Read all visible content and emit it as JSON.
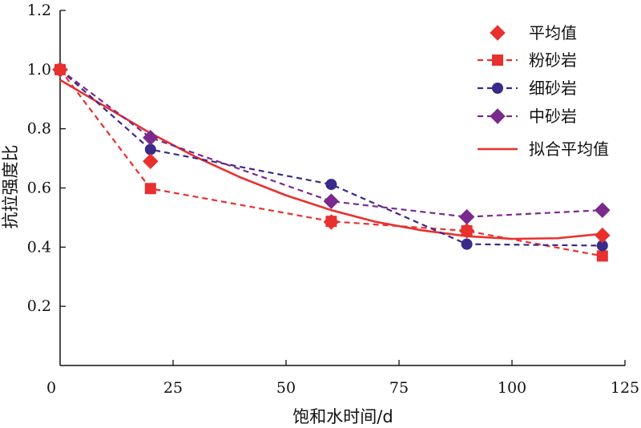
{
  "chart_data": {
    "type": "line",
    "xlabel": "饱和水时间/d",
    "ylabel": "抗拉强度比",
    "xlim": [
      0,
      125
    ],
    "ylim": [
      0,
      1.2
    ],
    "xticks": [
      0,
      25,
      50,
      75,
      100,
      125
    ],
    "xtick_labels": [
      "0",
      "25",
      "50",
      "75",
      "100",
      "125"
    ],
    "yticks": [
      0.2,
      0.4,
      0.6,
      0.8,
      1.0,
      1.2
    ],
    "ytick_labels": [
      "0.2",
      "0.4",
      "0.6",
      "0.8",
      "1.0",
      "1.2"
    ],
    "legend_position": "top-right",
    "colors": {
      "mean": "#e8312f",
      "siltstone": "#e8312f",
      "finesandstone": "#3a2a8a",
      "mediumsandstone": "#7a2a8c",
      "fit": "#e8312f"
    },
    "series": [
      {
        "key": "mean",
        "name": "平均值",
        "style": "markers",
        "marker": "diamond",
        "x": [
          0,
          20,
          60,
          90,
          120
        ],
        "y": [
          1.0,
          0.69,
          0.485,
          0.455,
          0.44
        ]
      },
      {
        "key": "siltstone",
        "name": "粉砂岩",
        "style": "dashed",
        "marker": "square",
        "x": [
          0,
          20,
          60,
          90,
          120
        ],
        "y": [
          1.0,
          0.598,
          0.487,
          0.455,
          0.37
        ]
      },
      {
        "key": "finesandstone",
        "name": "细砂岩",
        "style": "dashed",
        "marker": "circle",
        "x": [
          0,
          20,
          60,
          90,
          120
        ],
        "y": [
          1.0,
          0.73,
          0.612,
          0.41,
          0.405
        ]
      },
      {
        "key": "mediumsandstone",
        "name": "中砂岩",
        "style": "dashed",
        "marker": "diamond",
        "x": [
          0,
          20,
          60,
          90,
          120
        ],
        "y": [
          1.0,
          0.77,
          0.555,
          0.502,
          0.525
        ]
      },
      {
        "key": "fit",
        "name": "拟合平均值",
        "style": "solid",
        "marker": "none",
        "x": [
          0,
          10,
          20,
          30,
          40,
          50,
          60,
          70,
          80,
          90,
          100,
          110,
          120
        ],
        "y": [
          0.965,
          0.875,
          0.785,
          0.705,
          0.635,
          0.575,
          0.525,
          0.485,
          0.457,
          0.437,
          0.428,
          0.43,
          0.445
        ]
      }
    ]
  }
}
